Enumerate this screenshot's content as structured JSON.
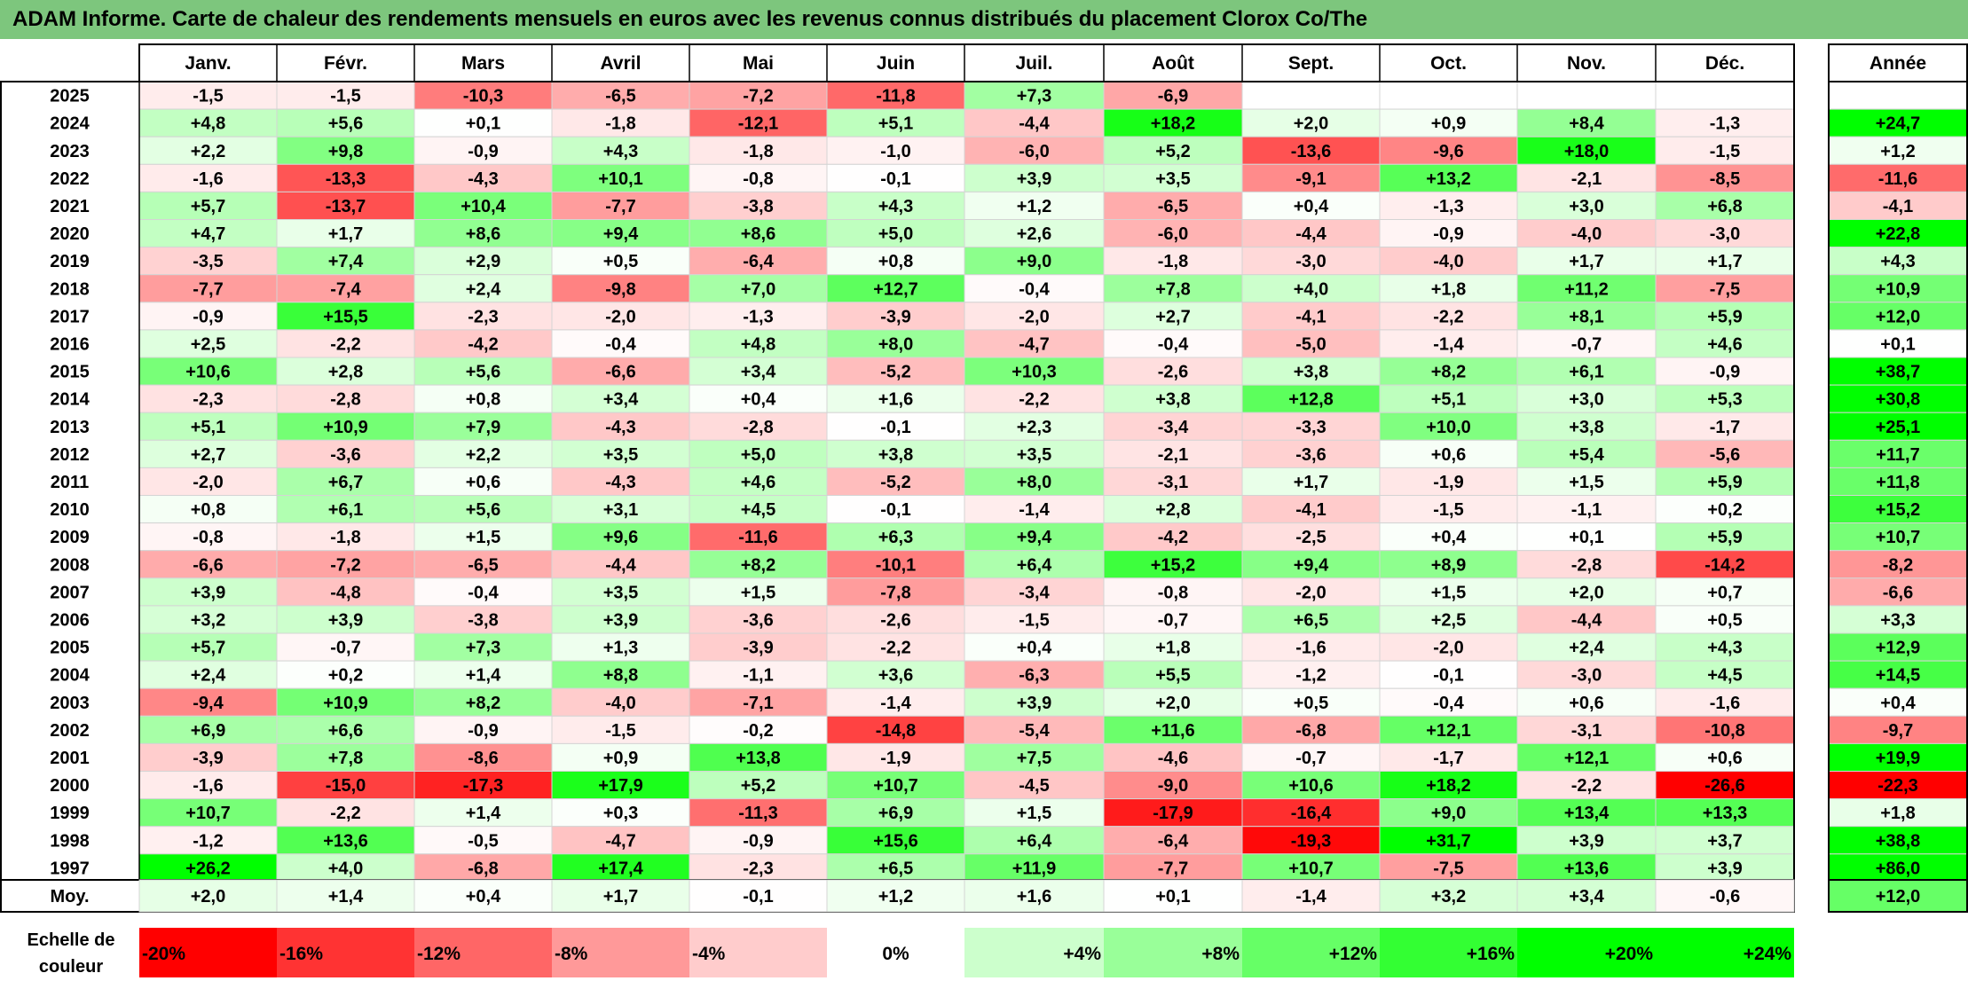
{
  "title": "ADAM Informe. Carte de chaleur des rendements mensuels en euros avec les revenus connus distribués du placement Clorox Co/The",
  "chart_data": {
    "type": "heatmap",
    "months": [
      "Janv.",
      "Févr.",
      "Mars",
      "Avril",
      "Mai",
      "Juin",
      "Juil.",
      "Août",
      "Sept.",
      "Oct.",
      "Nov.",
      "Déc."
    ],
    "annual_header": "Année",
    "rows": [
      {
        "year": "2025",
        "values": [
          -1.5,
          -1.5,
          -10.3,
          -6.5,
          -7.2,
          -11.8,
          7.3,
          -6.9,
          null,
          null,
          null,
          null
        ],
        "annual": null
      },
      {
        "year": "2024",
        "values": [
          4.8,
          5.6,
          0.1,
          -1.8,
          -12.1,
          5.1,
          -4.4,
          18.2,
          2.0,
          0.9,
          8.4,
          -1.3
        ],
        "annual": 24.7
      },
      {
        "year": "2023",
        "values": [
          2.2,
          9.8,
          -0.9,
          4.3,
          -1.8,
          -1.0,
          -6.0,
          5.2,
          -13.6,
          -9.6,
          18.0,
          -1.5
        ],
        "annual": 1.2
      },
      {
        "year": "2022",
        "values": [
          -1.6,
          -13.3,
          -4.3,
          10.1,
          -0.8,
          -0.1,
          3.9,
          3.5,
          -9.1,
          13.2,
          -2.1,
          -8.5
        ],
        "annual": -11.6
      },
      {
        "year": "2021",
        "values": [
          5.7,
          -13.7,
          10.4,
          -7.7,
          -3.8,
          4.3,
          1.2,
          -6.5,
          0.4,
          -1.3,
          3.0,
          6.8
        ],
        "annual": -4.1
      },
      {
        "year": "2020",
        "values": [
          4.7,
          1.7,
          8.6,
          9.4,
          8.6,
          5.0,
          2.6,
          -6.0,
          -4.4,
          -0.9,
          -4.0,
          -3.0
        ],
        "annual": 22.8
      },
      {
        "year": "2019",
        "values": [
          -3.5,
          7.4,
          2.9,
          0.5,
          -6.4,
          0.8,
          9.0,
          -1.8,
          -3.0,
          -4.0,
          1.7,
          1.7
        ],
        "annual": 4.3
      },
      {
        "year": "2018",
        "values": [
          -7.7,
          -7.4,
          2.4,
          -9.8,
          7.0,
          12.7,
          -0.4,
          7.8,
          4.0,
          1.8,
          11.2,
          -7.5
        ],
        "annual": 10.9
      },
      {
        "year": "2017",
        "values": [
          -0.9,
          15.5,
          -2.3,
          -2.0,
          -1.3,
          -3.9,
          -2.0,
          2.7,
          -4.1,
          -2.2,
          8.1,
          5.9
        ],
        "annual": 12.0
      },
      {
        "year": "2016",
        "values": [
          2.5,
          -2.2,
          -4.2,
          -0.4,
          4.8,
          8.0,
          -4.7,
          -0.4,
          -5.0,
          -1.4,
          -0.7,
          4.6
        ],
        "annual": 0.1
      },
      {
        "year": "2015",
        "values": [
          10.6,
          2.8,
          5.6,
          -6.6,
          3.4,
          -5.2,
          10.3,
          -2.6,
          3.8,
          8.2,
          6.1,
          -0.9
        ],
        "annual": 38.7
      },
      {
        "year": "2014",
        "values": [
          -2.3,
          -2.8,
          0.8,
          3.4,
          0.4,
          1.6,
          -2.2,
          3.8,
          12.8,
          5.1,
          3.0,
          5.3
        ],
        "annual": 30.8
      },
      {
        "year": "2013",
        "values": [
          5.1,
          10.9,
          7.9,
          -4.3,
          -2.8,
          -0.1,
          2.3,
          -3.4,
          -3.3,
          10.0,
          3.8,
          -1.7
        ],
        "annual": 25.1
      },
      {
        "year": "2012",
        "values": [
          2.7,
          -3.6,
          2.2,
          3.5,
          5.0,
          3.8,
          3.5,
          -2.1,
          -3.6,
          0.6,
          5.4,
          -5.6
        ],
        "annual": 11.7
      },
      {
        "year": "2011",
        "values": [
          -2.0,
          6.7,
          0.6,
          -4.3,
          4.6,
          -5.2,
          8.0,
          -3.1,
          1.7,
          -1.9,
          1.5,
          5.9
        ],
        "annual": 11.8
      },
      {
        "year": "2010",
        "values": [
          0.8,
          6.1,
          5.6,
          3.1,
          4.5,
          -0.1,
          -1.4,
          2.8,
          -4.1,
          -1.5,
          -1.1,
          0.2
        ],
        "annual": 15.2
      },
      {
        "year": "2009",
        "values": [
          -0.8,
          -1.8,
          1.5,
          9.6,
          -11.6,
          6.3,
          9.4,
          -4.2,
          -2.5,
          0.4,
          0.1,
          5.9
        ],
        "annual": 10.7
      },
      {
        "year": "2008",
        "values": [
          -6.6,
          -7.2,
          -6.5,
          -4.4,
          8.2,
          -10.1,
          6.4,
          15.2,
          9.4,
          8.9,
          -2.8,
          -14.2
        ],
        "annual": -8.2
      },
      {
        "year": "2007",
        "values": [
          3.9,
          -4.8,
          -0.4,
          3.5,
          1.5,
          -7.8,
          -3.4,
          -0.8,
          -2.0,
          1.5,
          2.0,
          0.7
        ],
        "annual": -6.6
      },
      {
        "year": "2006",
        "values": [
          3.2,
          3.9,
          -3.8,
          3.9,
          -3.6,
          -2.6,
          -1.5,
          -0.7,
          6.5,
          2.5,
          -4.4,
          0.5
        ],
        "annual": 3.3
      },
      {
        "year": "2005",
        "values": [
          5.7,
          -0.7,
          7.3,
          1.3,
          -3.9,
          -2.2,
          0.4,
          1.8,
          -1.6,
          -2.0,
          2.4,
          4.3
        ],
        "annual": 12.9
      },
      {
        "year": "2004",
        "values": [
          2.4,
          0.2,
          1.4,
          8.8,
          -1.1,
          3.6,
          -6.3,
          5.5,
          -1.2,
          -0.1,
          -3.0,
          4.5
        ],
        "annual": 14.5
      },
      {
        "year": "2003",
        "values": [
          -9.4,
          10.9,
          8.2,
          -4.0,
          -7.1,
          -1.4,
          3.9,
          2.0,
          0.5,
          -0.4,
          0.6,
          -1.6
        ],
        "annual": 0.4
      },
      {
        "year": "2002",
        "values": [
          6.9,
          6.6,
          -0.9,
          -1.5,
          -0.2,
          -14.8,
          -5.4,
          11.6,
          -6.8,
          12.1,
          -3.1,
          -10.8
        ],
        "annual": -9.7
      },
      {
        "year": "2001",
        "values": [
          -3.9,
          7.8,
          -8.6,
          0.9,
          13.8,
          -1.9,
          7.5,
          -4.6,
          -0.7,
          -1.7,
          12.1,
          0.6
        ],
        "annual": 19.9
      },
      {
        "year": "2000",
        "values": [
          -1.6,
          -15.0,
          -17.3,
          17.9,
          5.2,
          10.7,
          -4.5,
          -9.0,
          10.6,
          18.2,
          -2.2,
          -26.6
        ],
        "annual": -22.3
      },
      {
        "year": "1999",
        "values": [
          10.7,
          -2.2,
          1.4,
          0.3,
          -11.3,
          6.9,
          1.5,
          -17.9,
          -16.4,
          9.0,
          13.4,
          13.3
        ],
        "annual": 1.8
      },
      {
        "year": "1998",
        "values": [
          -1.2,
          13.6,
          -0.5,
          -4.7,
          -0.9,
          15.6,
          6.4,
          -6.4,
          -19.3,
          31.7,
          3.9,
          3.7
        ],
        "annual": 38.8
      },
      {
        "year": "1997",
        "values": [
          26.2,
          4.0,
          -6.8,
          17.4,
          -2.3,
          6.5,
          11.9,
          -7.7,
          10.7,
          -7.5,
          13.6,
          3.9
        ],
        "annual": 86.0
      }
    ],
    "average": {
      "label": "Moy.",
      "values": [
        2.0,
        1.4,
        0.4,
        1.7,
        -0.1,
        1.2,
        1.6,
        0.1,
        -1.4,
        3.2,
        3.4,
        -0.6
      ],
      "annual": 12.0
    },
    "scale": {
      "label_lines": [
        "Echelle de",
        "couleur"
      ],
      "steps": [
        {
          "value": -20,
          "label": "-20%"
        },
        {
          "value": -16,
          "label": "-16%"
        },
        {
          "value": -12,
          "label": "-12%"
        },
        {
          "value": -8,
          "label": "-8%"
        },
        {
          "value": -4,
          "label": "-4%"
        },
        {
          "value": 0,
          "label": "0%"
        },
        {
          "value": 4,
          "label": "+4%"
        },
        {
          "value": 8,
          "label": "+8%"
        },
        {
          "value": 12,
          "label": "+12%"
        },
        {
          "value": 16,
          "label": "+16%"
        },
        {
          "value": 20,
          "label": "+20%"
        },
        {
          "value": 24,
          "label": "+24%"
        }
      ]
    },
    "colors": {
      "negative": "#ff0000",
      "positive": "#00ff00",
      "neutral": "#ffffff",
      "title_background": "#7dc67d"
    }
  }
}
